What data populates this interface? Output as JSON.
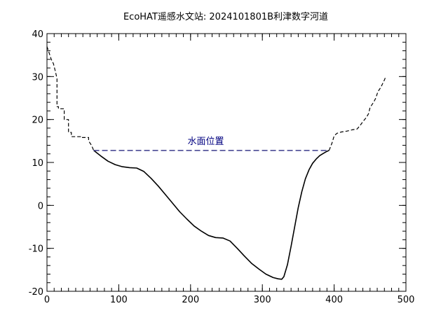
{
  "chart_data": {
    "type": "line",
    "title": "EcoHAT遥感水文站: 2024101801B利津数字河道",
    "xlabel": "",
    "ylabel": "",
    "xlim": [
      0,
      500
    ],
    "ylim": [
      -20,
      40
    ],
    "x_ticks": [
      "0",
      "100",
      "200",
      "300",
      "400",
      "500"
    ],
    "y_ticks": [
      "-20",
      "-10",
      "0",
      "10",
      "20",
      "30",
      "40"
    ],
    "grid": false,
    "annotation": "水面位置",
    "water_level": {
      "x_start": 65,
      "x_end": 393,
      "y": 12.8,
      "color": "#3c3c8c"
    },
    "series": [
      {
        "style": "dashed",
        "color": "#000000",
        "x": [
          0,
          3,
          6,
          9,
          12,
          14,
          14,
          16,
          16,
          24,
          24,
          30,
          30,
          34,
          34,
          38,
          38,
          47,
          47,
          58,
          58,
          62,
          65
        ],
        "y": [
          37,
          35.5,
          34,
          33,
          31,
          29.5,
          23,
          23,
          22.5,
          22.5,
          20,
          20,
          17,
          17,
          16,
          16,
          16,
          16,
          15.8,
          15.8,
          15,
          14,
          12.8
        ]
      },
      {
        "style": "solid",
        "color": "#000000",
        "x": [
          65,
          75,
          85,
          95,
          105,
          115,
          125,
          135,
          145,
          155,
          165,
          175,
          185,
          195,
          205,
          215,
          225,
          235,
          245,
          255,
          265,
          275,
          285,
          295,
          305,
          315,
          322,
          327,
          330,
          335,
          340,
          345,
          350,
          355,
          360,
          365,
          370,
          375,
          380,
          385,
          390,
          393
        ],
        "y": [
          12.8,
          11.5,
          10.3,
          9.5,
          9.0,
          8.8,
          8.7,
          7.9,
          6.3,
          4.5,
          2.5,
          0.5,
          -1.5,
          -3.2,
          -4.8,
          -6.0,
          -7.0,
          -7.5,
          -7.6,
          -8.3,
          -10.0,
          -11.8,
          -13.5,
          -14.8,
          -16.0,
          -16.8,
          -17.1,
          -17.2,
          -16.6,
          -13.8,
          -9.5,
          -5.0,
          -0.5,
          3.2,
          6.2,
          8.3,
          9.8,
          10.8,
          11.6,
          12.1,
          12.6,
          12.8
        ]
      },
      {
        "style": "dashed",
        "color": "#000000",
        "x": [
          393,
          397,
          400,
          404,
          410,
          418,
          425,
          432,
          437,
          440,
          445,
          448,
          450,
          455,
          458,
          461,
          465,
          470,
          472
        ],
        "y": [
          12.8,
          14.5,
          16.2,
          16.8,
          17.1,
          17.3,
          17.6,
          17.8,
          18.8,
          19.5,
          20.5,
          21.4,
          22.8,
          24.0,
          25.0,
          26.5,
          27.5,
          29.2,
          30.0
        ]
      }
    ]
  }
}
